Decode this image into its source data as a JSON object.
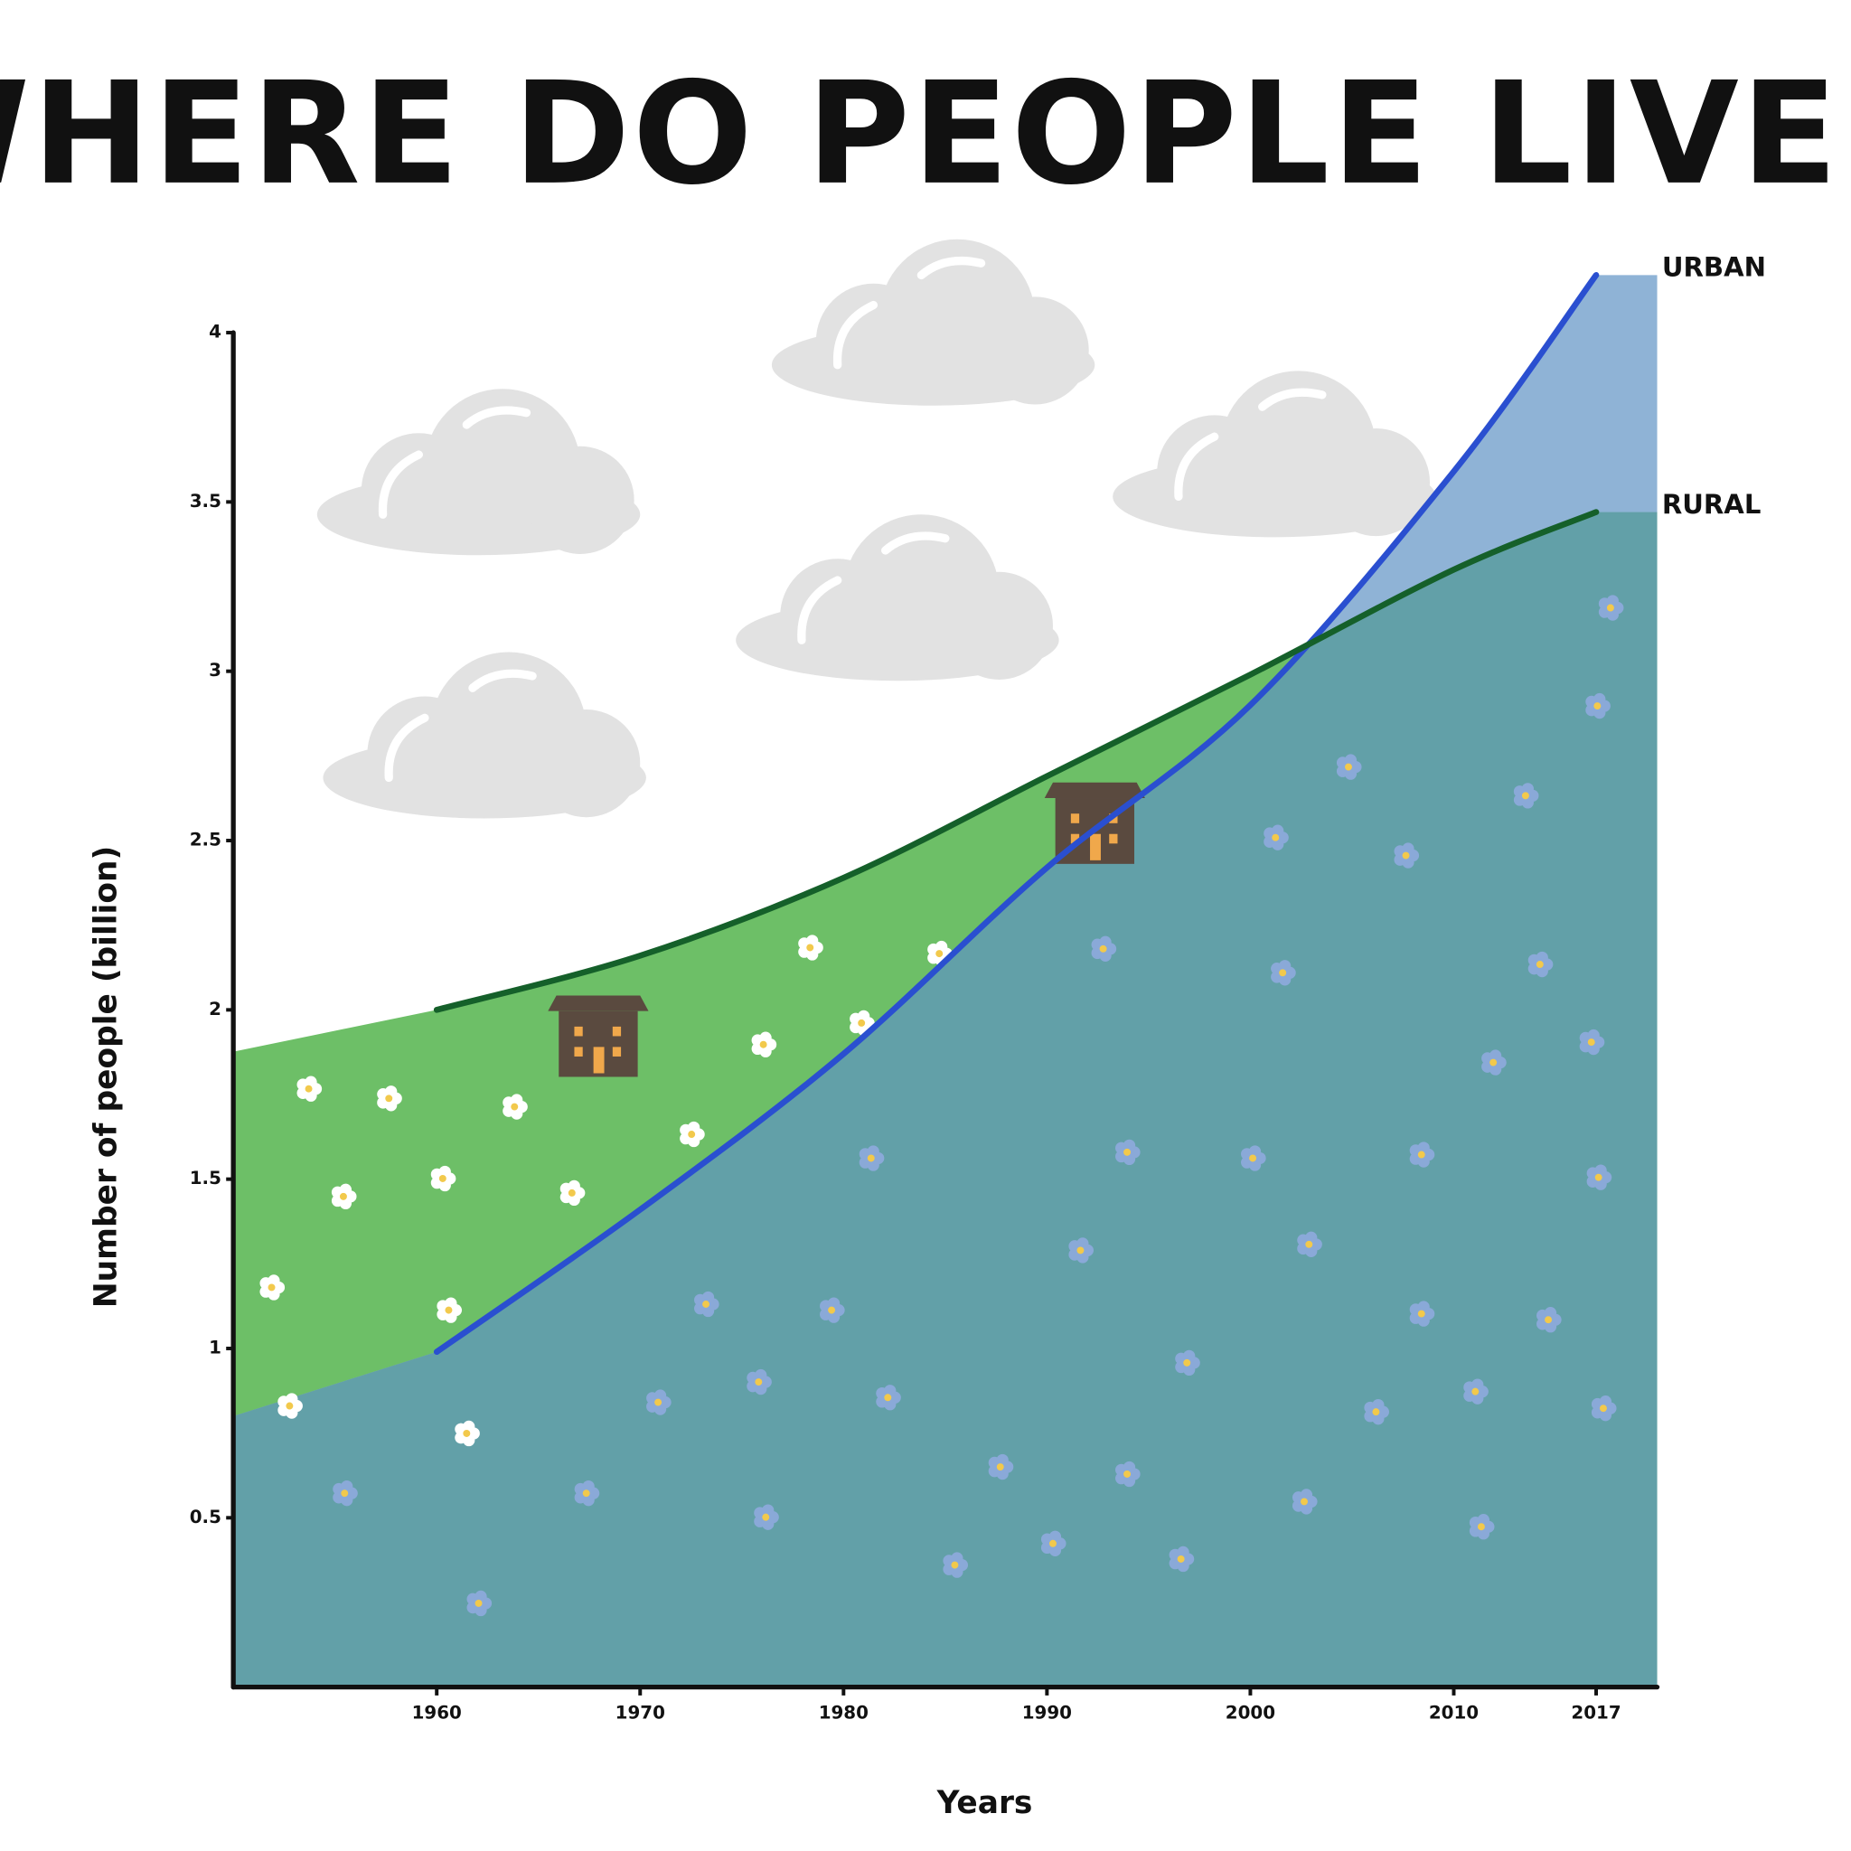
{
  "chart_data": {
    "type": "area-line",
    "title": "WHERE DO PEOPLE LIVE ?",
    "x_label": "Years",
    "y_label": "Number of people (billion)",
    "x": [
      1960,
      1970,
      1980,
      1990,
      2000,
      2010,
      2017
    ],
    "series": [
      {
        "name": "URBAN",
        "color": "#2a4fd0",
        "values": [
          0.99,
          1.41,
          1.87,
          2.42,
          2.9,
          3.59,
          4.17
        ]
      },
      {
        "name": "RURAL",
        "color": "#15602a",
        "values": [
          2.0,
          2.16,
          2.39,
          2.69,
          2.99,
          3.3,
          3.47
        ]
      }
    ],
    "xlim": [
      1950,
      2020
    ],
    "xticks": [
      1960,
      1970,
      1980,
      1990,
      2000,
      2010,
      2017
    ],
    "ylim": [
      0,
      4
    ],
    "yticks": [
      0.5,
      1,
      1.5,
      2,
      2.5,
      3,
      3.5,
      4
    ]
  }
}
